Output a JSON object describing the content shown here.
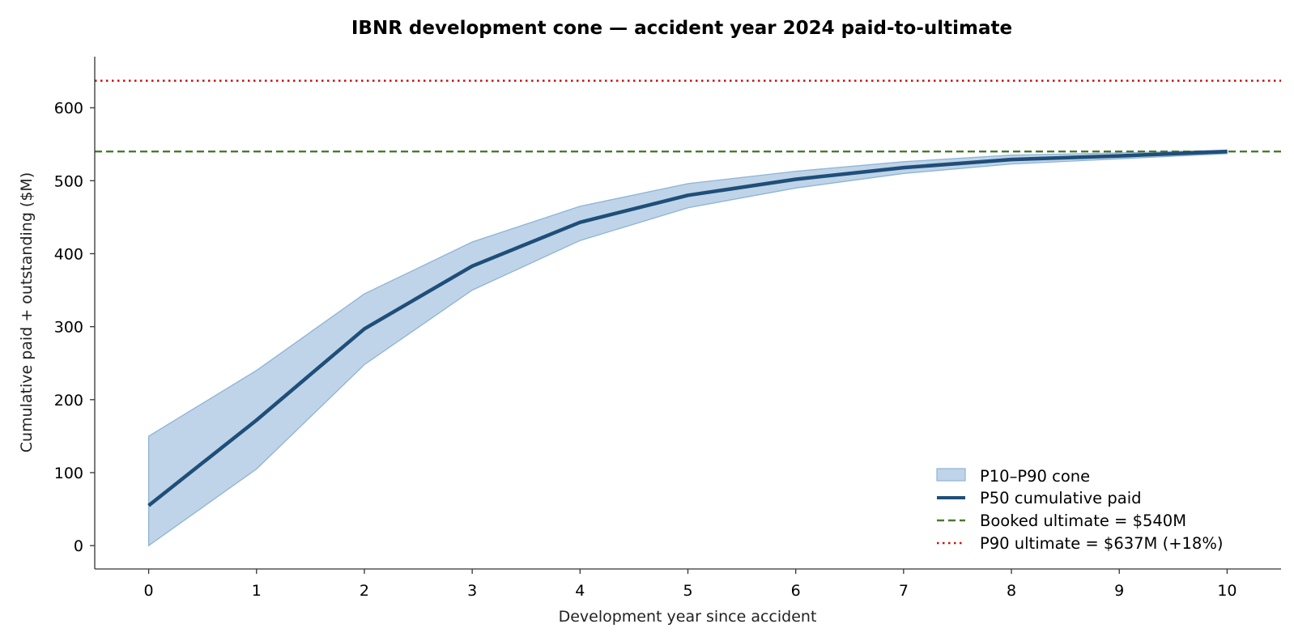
{
  "chart_data": {
    "type": "line",
    "title": "IBNR development cone — accident year 2024 paid-to-ultimate",
    "xlabel": "Development year since accident",
    "ylabel": "Cumulative paid + outstanding  ($M)",
    "x": [
      0,
      1,
      2,
      3,
      4,
      5,
      6,
      7,
      8,
      9,
      10
    ],
    "xlim": [
      -0.5,
      10.5
    ],
    "ylim": [
      -32,
      670
    ],
    "xticks": [
      0,
      1,
      2,
      3,
      4,
      5,
      6,
      7,
      8,
      9,
      10
    ],
    "yticks": [
      0,
      100,
      200,
      300,
      400,
      500,
      600
    ],
    "grid": false,
    "legend_position": "lower-right",
    "band": {
      "name": "P10–P90 cone",
      "lower": [
        0,
        105,
        248,
        350,
        418,
        463,
        490,
        510,
        523,
        530,
        537
      ],
      "upper": [
        150,
        240,
        345,
        416,
        465,
        496,
        513,
        526,
        535,
        538,
        542
      ],
      "color": "#a9c6e0"
    },
    "series": [
      {
        "name": "P50 cumulative paid",
        "values": [
          55,
          172,
          297,
          383,
          443,
          480,
          502,
          518,
          529,
          534,
          540
        ],
        "color": "#1f4e79"
      }
    ],
    "reference_lines": [
      {
        "name": "Booked ultimate = $540M",
        "y": 540,
        "color": "#4a7a2e",
        "style": "dashed"
      },
      {
        "name": "P90 ultimate = $637M  (+18%)",
        "y": 637,
        "color": "#cc1111",
        "style": "dotted"
      }
    ]
  }
}
